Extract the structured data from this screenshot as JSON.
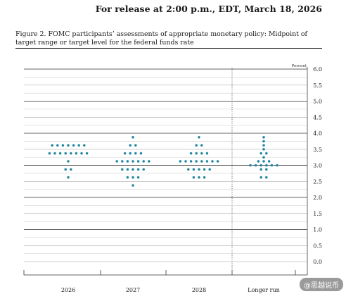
{
  "header": {
    "release_text": "For release at 2:00 p.m., EDT, March 18, 2026"
  },
  "chart_data": {
    "type": "scatter",
    "title": "Figure 2. FOMC participants’ assessments of appropriate monetary policy: Midpoint of target range or target level for the federal funds rate",
    "ylabel": "Percent",
    "ylim": [
      0,
      6
    ],
    "yticks": [
      "0.0",
      "0.5",
      "1.0",
      "1.5",
      "2.0",
      "2.5",
      "3.0",
      "3.5",
      "4.0",
      "4.5",
      "5.0",
      "5.5",
      "6.0"
    ],
    "categories": [
      "2026",
      "2027",
      "2028",
      "Longer run"
    ],
    "grid": true,
    "dot_color": "#1f86a3",
    "groups": [
      {
        "category": "2026",
        "counts": [
          {
            "y": 3.625,
            "n": 7
          },
          {
            "y": 3.375,
            "n": 8
          },
          {
            "y": 3.125,
            "n": 1
          },
          {
            "y": 2.875,
            "n": 2
          },
          {
            "y": 2.625,
            "n": 1
          }
        ]
      },
      {
        "category": "2027",
        "counts": [
          {
            "y": 3.875,
            "n": 1
          },
          {
            "y": 3.625,
            "n": 2
          },
          {
            "y": 3.375,
            "n": 4
          },
          {
            "y": 3.125,
            "n": 7
          },
          {
            "y": 2.875,
            "n": 5
          },
          {
            "y": 2.625,
            "n": 3
          },
          {
            "y": 2.375,
            "n": 1
          }
        ]
      },
      {
        "category": "2028",
        "counts": [
          {
            "y": 3.875,
            "n": 1
          },
          {
            "y": 3.625,
            "n": 2
          },
          {
            "y": 3.375,
            "n": 4
          },
          {
            "y": 3.125,
            "n": 8
          },
          {
            "y": 2.875,
            "n": 5
          },
          {
            "y": 2.625,
            "n": 3
          }
        ]
      },
      {
        "category": "Longer run",
        "counts": [
          {
            "y": 3.875,
            "n": 1
          },
          {
            "y": 3.75,
            "n": 1
          },
          {
            "y": 3.625,
            "n": 1
          },
          {
            "y": 3.5,
            "n": 1
          },
          {
            "y": 3.375,
            "n": 2
          },
          {
            "y": 3.25,
            "n": 1
          },
          {
            "y": 3.125,
            "n": 3
          },
          {
            "y": 3.0,
            "n": 6
          },
          {
            "y": 2.875,
            "n": 2
          },
          {
            "y": 2.625,
            "n": 2
          }
        ]
      }
    ]
  },
  "watermark": "@思越说币"
}
